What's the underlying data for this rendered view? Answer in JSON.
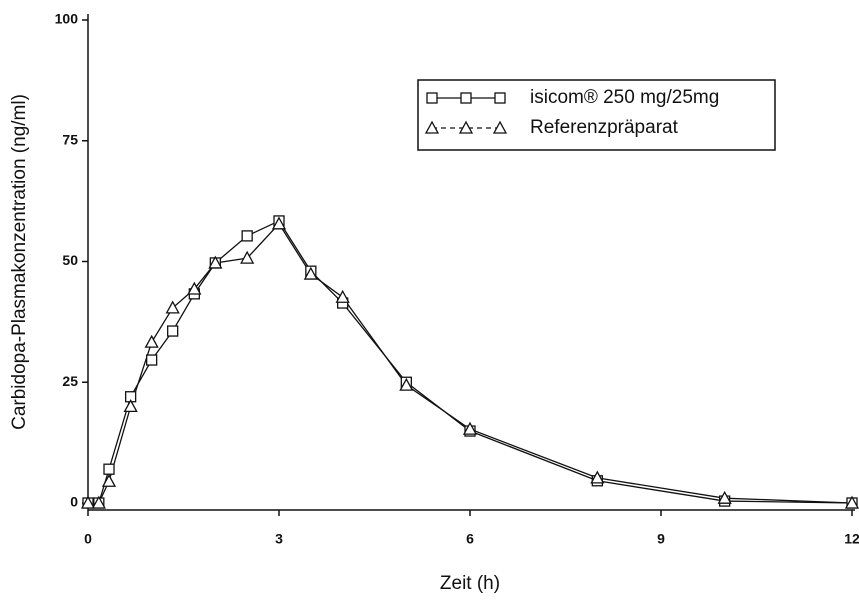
{
  "chart_data": {
    "type": "line",
    "x_label": "Zeit (h)",
    "y_label": "Carbidopa-Plasmakonzentration (ng/ml)",
    "x": [
      0,
      0.17,
      0.33,
      0.67,
      1,
      1.33,
      1.67,
      2,
      2.5,
      3,
      3.5,
      4,
      5,
      6,
      8,
      10,
      12
    ],
    "series": [
      {
        "name": "isicom® 250 mg/25mg",
        "color": "#111111",
        "marker": "square",
        "values": [
          0,
          0,
          7,
          22,
          29.6,
          35.6,
          43.3,
          49.7,
          55.3,
          58.4,
          48,
          41.4,
          25,
          14.9,
          4.6,
          0.4,
          0
        ]
      },
      {
        "name": "Referenzpräparat",
        "color": "#111111",
        "marker": "triangle",
        "values": [
          0,
          0,
          4.5,
          20,
          33.3,
          40.4,
          44.3,
          49.7,
          50.7,
          57.8,
          47.4,
          42.6,
          24.4,
          15.3,
          5.2,
          1,
          0
        ]
      }
    ],
    "xlim": [
      0,
      12
    ],
    "xticks": [
      0,
      3,
      6,
      9,
      12
    ],
    "ylim": [
      0,
      100
    ],
    "yticks": [
      0,
      25,
      50,
      75,
      100
    ],
    "grid": false,
    "legend": "upper right"
  }
}
